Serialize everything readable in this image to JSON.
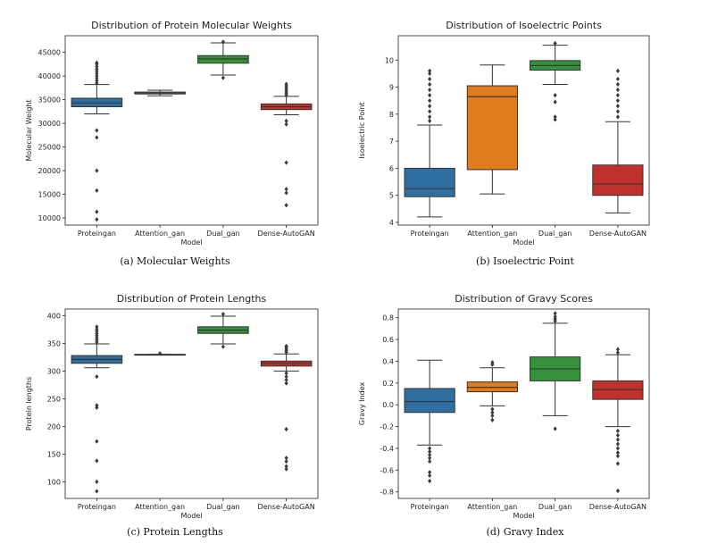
{
  "figure": {
    "colors": {
      "Proteingan": "#2f6e9e",
      "Attention_gan": "#e07b20",
      "Dual_gan": "#36923a",
      "Dense-AutoGAN": "#c1312b",
      "gray_box": "#9a9a9a",
      "line": "#333333"
    }
  },
  "chart_data": [
    {
      "id": "mw",
      "type": "boxplot",
      "title": "Distribution of Protein Molecular Weights",
      "caption": "(a) Molecular Weights",
      "xlabel": "Model",
      "ylabel": "Molecular Weight",
      "ylim": [
        8500,
        48500
      ],
      "yticks": [
        10000,
        15000,
        20000,
        25000,
        30000,
        35000,
        40000,
        45000
      ],
      "categories": [
        "Proteingan",
        "Attention_gan",
        "Dual_gan",
        "Dense-AutoGAN"
      ],
      "boxes": [
        {
          "name": "Proteingan",
          "whislo": 32000,
          "q1": 33500,
          "med": 34300,
          "q3": 35300,
          "whishi": 38200,
          "fill": "#2f6e9e",
          "fliers": [
            38500,
            39000,
            39500,
            40000,
            40500,
            41000,
            41500,
            42000,
            42500,
            42800,
            28500,
            27000,
            20000,
            15800,
            11300,
            9700
          ]
        },
        {
          "name": "Attention_gan",
          "whislo": 35800,
          "q1": 36200,
          "med": 36400,
          "q3": 36600,
          "whishi": 37000,
          "fill": "#9a9a9a",
          "fliers": []
        },
        {
          "name": "Dual_gan",
          "whislo": 40200,
          "q1": 42700,
          "med": 43600,
          "q3": 44300,
          "whishi": 47000,
          "fill": "#36923a",
          "fliers": [
            39600,
            47200
          ]
        },
        {
          "name": "Dense-AutoGAN",
          "whislo": 31800,
          "q1": 32900,
          "med": 33500,
          "q3": 34100,
          "whishi": 35700,
          "fill": "#c1312b",
          "fliers": [
            35900,
            36300,
            36700,
            37100,
            37500,
            37900,
            38300,
            30500,
            29800,
            21700,
            16100,
            15300,
            12700
          ]
        }
      ]
    },
    {
      "id": "pi",
      "type": "boxplot",
      "title": "Distribution of Isoelectric Points",
      "caption": "(b) Isoelectric Point",
      "xlabel": "Model",
      "ylabel": "Isoelectric Point",
      "ylim": [
        3.9,
        10.9
      ],
      "yticks": [
        4,
        5,
        6,
        7,
        8,
        9,
        10
      ],
      "categories": [
        "Proteingan",
        "Attention_gan",
        "Dual_gan",
        "Dense-AutoGAN"
      ],
      "boxes": [
        {
          "name": "Proteingan",
          "whislo": 4.2,
          "q1": 4.95,
          "med": 5.25,
          "q3": 6.0,
          "whishi": 7.6,
          "fill": "#2f6e9e",
          "fliers": [
            7.75,
            7.9,
            8.1,
            8.3,
            8.5,
            8.7,
            8.9,
            9.1,
            9.3,
            9.5,
            9.6
          ]
        },
        {
          "name": "Attention_gan",
          "whislo": 5.05,
          "q1": 5.95,
          "med": 8.65,
          "q3": 9.05,
          "whishi": 9.82,
          "fill": "#e07b20",
          "fliers": []
        },
        {
          "name": "Dual_gan",
          "whislo": 9.1,
          "q1": 9.63,
          "med": 9.8,
          "q3": 9.98,
          "whishi": 10.55,
          "fill": "#36923a",
          "fliers": [
            7.8,
            7.9,
            8.45,
            8.7,
            10.62
          ]
        },
        {
          "name": "Dense-AutoGAN",
          "whislo": 4.35,
          "q1": 5.0,
          "med": 5.42,
          "q3": 6.12,
          "whishi": 7.72,
          "fill": "#c1312b",
          "fliers": [
            7.9,
            8.1,
            8.3,
            8.5,
            8.7,
            8.9,
            9.1,
            9.3,
            9.6
          ]
        }
      ]
    },
    {
      "id": "len",
      "type": "boxplot",
      "title": "Distribution of Protein Lengths",
      "caption": "(c) Protein Lengths",
      "xlabel": "Model",
      "ylabel": "Protein lengths",
      "ylim": [
        70,
        412
      ],
      "yticks": [
        100,
        150,
        200,
        250,
        300,
        350,
        400
      ],
      "categories": [
        "Proteingan",
        "Attention_gan",
        "Dual_gan",
        "Dense-AutoGAN"
      ],
      "boxes": [
        {
          "name": "Proteingan",
          "whislo": 306,
          "q1": 314,
          "med": 321,
          "q3": 328,
          "whishi": 349,
          "fill": "#2f6e9e",
          "fliers": [
            352,
            356,
            360,
            364,
            368,
            372,
            376,
            380,
            290,
            238,
            234,
            173,
            138,
            100,
            83
          ]
        },
        {
          "name": "Attention_gan",
          "whislo": 330,
          "q1": 330,
          "med": 330,
          "q3": 330,
          "whishi": 330,
          "fill": "#9a9a9a",
          "fliers": [
            332
          ]
        },
        {
          "name": "Dual_gan",
          "whislo": 349,
          "q1": 368,
          "med": 374,
          "q3": 380,
          "whishi": 399,
          "fill": "#36923a",
          "fliers": [
            344,
            403
          ]
        },
        {
          "name": "Dense-AutoGAN",
          "whislo": 300,
          "q1": 309,
          "med": 314,
          "q3": 318,
          "whishi": 331,
          "fill": "#c1312b",
          "fliers": [
            334,
            337,
            340,
            343,
            345,
            296,
            290,
            284,
            278,
            195,
            143,
            137,
            128,
            123
          ]
        }
      ]
    },
    {
      "id": "gravy",
      "type": "boxplot",
      "title": "Distribution of Gravy Scores",
      "caption": "(d) Gravy Index",
      "xlabel": "Model",
      "ylabel": "Gravy Index",
      "ylim": [
        -0.86,
        0.88
      ],
      "yticks": [
        -0.8,
        -0.6,
        -0.4,
        -0.2,
        0.0,
        0.2,
        0.4,
        0.6,
        0.8
      ],
      "categories": [
        "Proteingan",
        "Attention_gan",
        "Dual_gan",
        "Dense-AutoGAN"
      ],
      "boxes": [
        {
          "name": "Proteingan",
          "whislo": -0.37,
          "q1": -0.07,
          "med": 0.03,
          "q3": 0.15,
          "whishi": 0.41,
          "fill": "#2f6e9e",
          "fliers": [
            -0.4,
            -0.43,
            -0.46,
            -0.49,
            -0.52,
            -0.62,
            -0.65,
            -0.7
          ]
        },
        {
          "name": "Attention_gan",
          "whislo": -0.01,
          "q1": 0.12,
          "med": 0.16,
          "q3": 0.21,
          "whishi": 0.34,
          "fill": "#e07b20",
          "fliers": [
            0.37,
            0.39,
            -0.04,
            -0.07,
            -0.1,
            -0.14
          ]
        },
        {
          "name": "Dual_gan",
          "whislo": -0.1,
          "q1": 0.22,
          "med": 0.33,
          "q3": 0.44,
          "whishi": 0.75,
          "fill": "#36923a",
          "fliers": [
            0.77,
            0.79,
            0.81,
            0.84,
            -0.22
          ]
        },
        {
          "name": "Dense-AutoGAN",
          "whislo": -0.2,
          "q1": 0.05,
          "med": 0.14,
          "q3": 0.22,
          "whishi": 0.46,
          "fill": "#c1312b",
          "fliers": [
            0.48,
            0.51,
            -0.24,
            -0.28,
            -0.32,
            -0.36,
            -0.4,
            -0.44,
            -0.47,
            -0.54,
            -0.79
          ]
        }
      ]
    }
  ]
}
